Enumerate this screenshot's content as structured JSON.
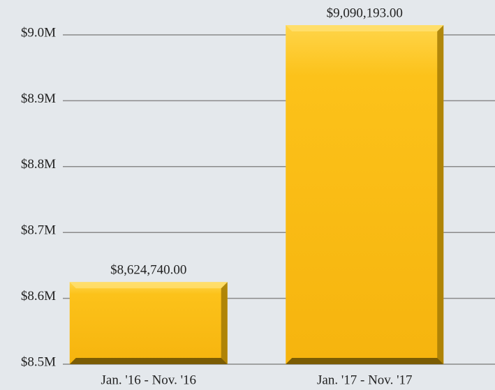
{
  "chart_data": {
    "type": "bar",
    "categories": [
      "Jan. '16 - Nov. '16",
      "Jan. '17 - Nov. '17"
    ],
    "values": [
      8624740,
      9090193
    ],
    "value_labels": [
      "$8,624,740.00",
      "$9,090,193.00"
    ],
    "color": "#fbbf16",
    "ylim": [
      8500000,
      9000000
    ],
    "yticks": [
      {
        "value": 8500000,
        "label": "$8.5M"
      },
      {
        "value": 8600000,
        "label": "$8.6M"
      },
      {
        "value": 8700000,
        "label": "$8.7M"
      },
      {
        "value": 8800000,
        "label": "$8.8M"
      },
      {
        "value": 8900000,
        "label": "$8.9M"
      },
      {
        "value": 9000000,
        "label": "$9.0M"
      }
    ],
    "grid": true
  }
}
